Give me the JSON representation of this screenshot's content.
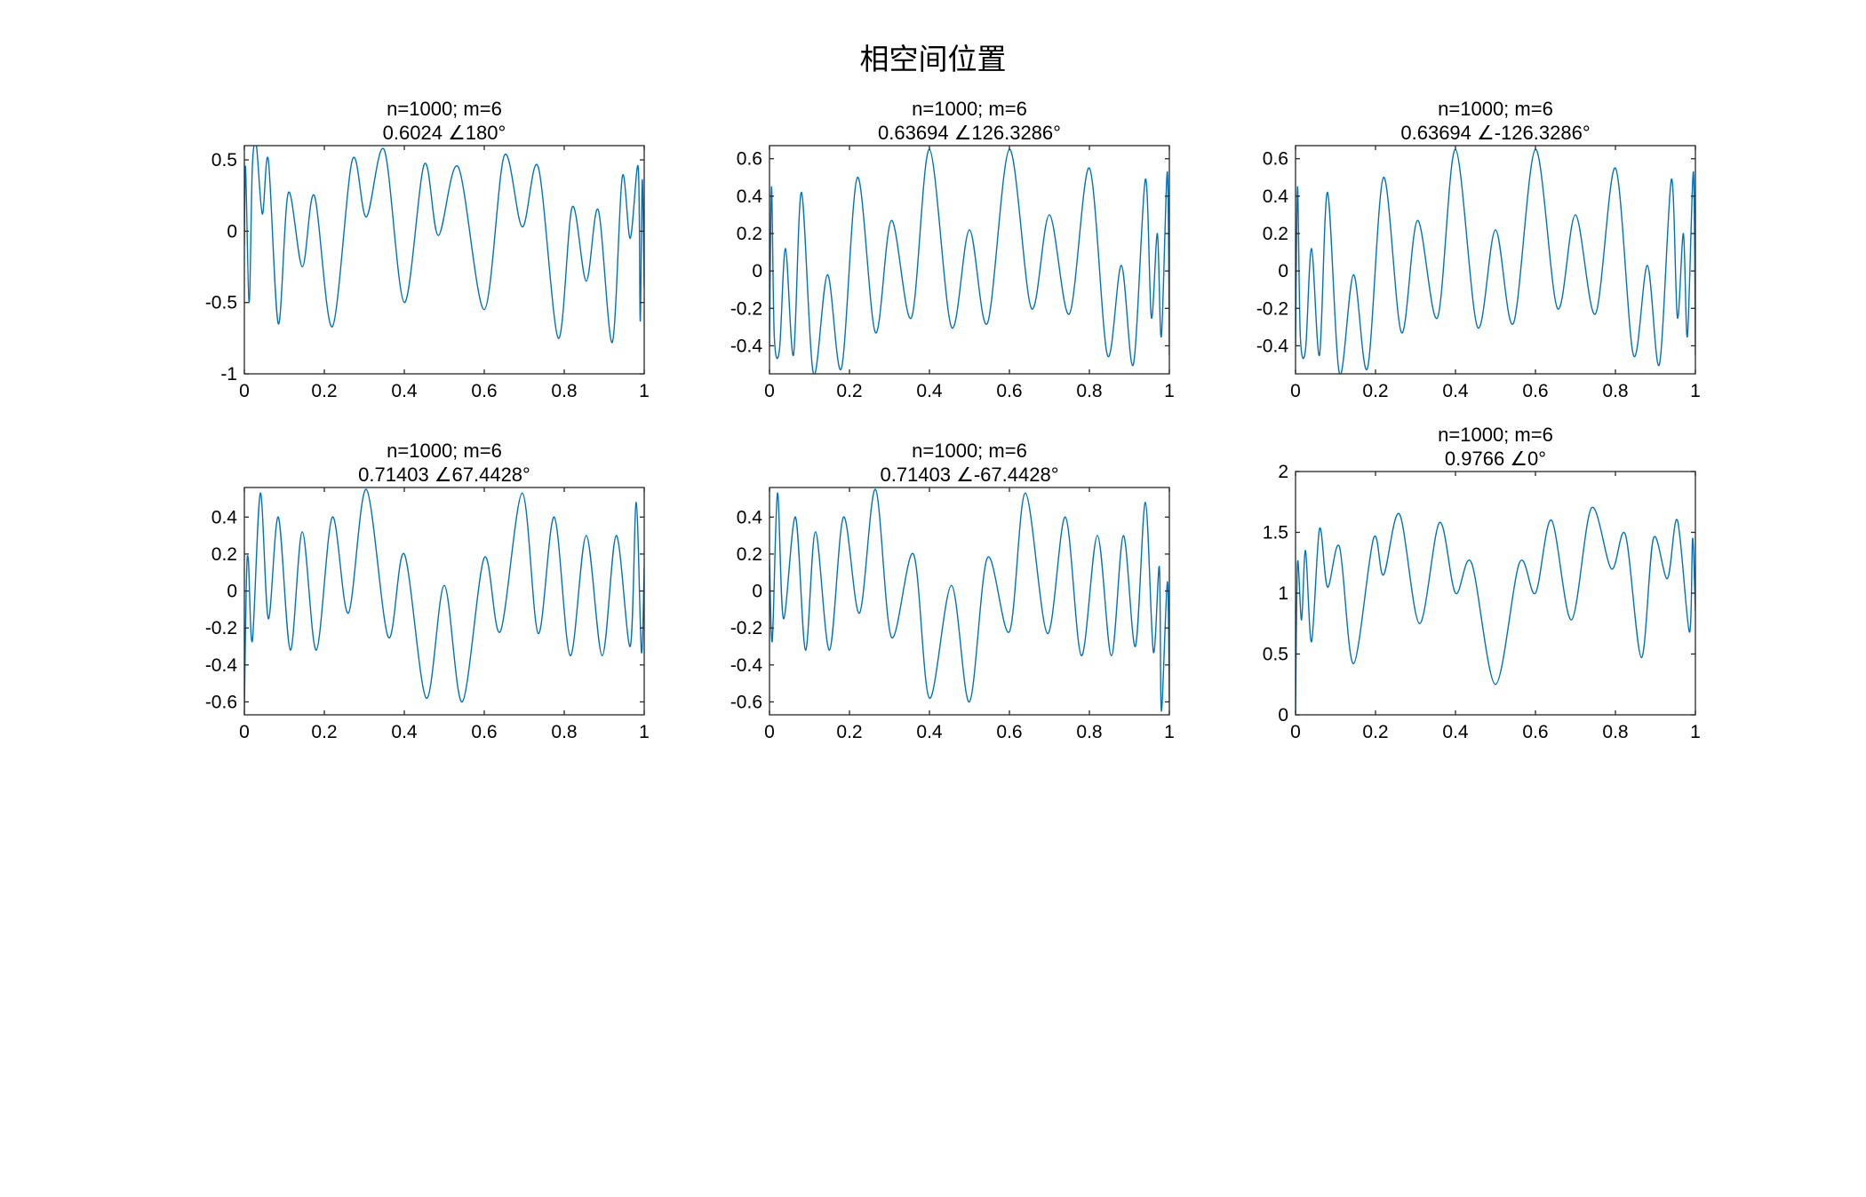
{
  "figure_title": "相空间位置",
  "colors": {
    "line": "#0072BD",
    "axes": "#262626",
    "background": "#ffffff"
  },
  "chart_data": [
    {
      "type": "line",
      "title_line1": "n=1000; m=6",
      "title_line2": "0.6024 ∠180°",
      "xlim": [
        0,
        1
      ],
      "ylim": [
        -1,
        0.6
      ],
      "xticks": [
        0,
        0.2,
        0.4,
        0.6,
        0.8,
        1
      ],
      "xtick_labels": [
        "0",
        "0.2",
        "0.4",
        "0.6",
        "0.8",
        "1"
      ],
      "yticks": [
        -1,
        -0.5,
        0,
        0.5
      ],
      "ytick_labels": [
        "-1",
        "-0.5",
        "0",
        "0.5"
      ],
      "x": [
        0,
        0.003,
        0.012,
        0.02,
        0.03,
        0.045,
        0.06,
        0.085,
        0.11,
        0.145,
        0.175,
        0.22,
        0.27,
        0.305,
        0.35,
        0.4,
        0.45,
        0.485,
        0.535,
        0.6,
        0.65,
        0.695,
        0.735,
        0.785,
        0.82,
        0.855,
        0.885,
        0.92,
        0.945,
        0.965,
        0.985,
        0.99,
        0.995,
        1.0
      ],
      "y": [
        -0.1,
        0.45,
        -0.5,
        0.45,
        0.6,
        0.12,
        0.5,
        -0.65,
        0.27,
        -0.25,
        0.25,
        -0.67,
        0.5,
        0.1,
        0.57,
        -0.5,
        0.47,
        -0.03,
        0.45,
        -0.55,
        0.53,
        0.03,
        0.45,
        -0.75,
        0.17,
        -0.35,
        0.15,
        -0.78,
        0.38,
        -0.05,
        0.45,
        -0.63,
        0.36,
        -0.4
      ]
    },
    {
      "type": "line",
      "title_line1": "n=1000; m=6",
      "title_line2": "0.63694 ∠126.3286°",
      "xlim": [
        0,
        1
      ],
      "ylim": [
        -0.55,
        0.67
      ],
      "xticks": [
        0,
        0.2,
        0.4,
        0.6,
        0.8,
        1
      ],
      "xtick_labels": [
        "0",
        "0.2",
        "0.4",
        "0.6",
        "0.8",
        "1"
      ],
      "yticks": [
        -0.4,
        -0.2,
        0,
        0.2,
        0.4,
        0.6
      ],
      "ytick_labels": [
        "-0.4",
        "-0.2",
        "0",
        "0.2",
        "0.4",
        "0.6"
      ],
      "x": [
        0,
        0.005,
        0.012,
        0.025,
        0.04,
        0.06,
        0.08,
        0.11,
        0.145,
        0.18,
        0.22,
        0.265,
        0.305,
        0.355,
        0.4,
        0.455,
        0.5,
        0.545,
        0.6,
        0.655,
        0.7,
        0.75,
        0.8,
        0.845,
        0.88,
        0.91,
        0.94,
        0.955,
        0.97,
        0.98,
        0.995,
        1.0
      ],
      "y": [
        -0.4,
        0.45,
        -0.35,
        -0.42,
        0.12,
        -0.45,
        0.42,
        -0.55,
        -0.02,
        -0.52,
        0.5,
        -0.33,
        0.27,
        -0.25,
        0.65,
        -0.3,
        0.22,
        -0.28,
        0.65,
        -0.2,
        0.3,
        -0.23,
        0.55,
        -0.45,
        0.03,
        -0.5,
        0.49,
        -0.25,
        0.2,
        -0.35,
        0.53,
        -0.45
      ]
    },
    {
      "type": "line",
      "title_line1": "n=1000; m=6",
      "title_line2": "0.63694 ∠-126.3286°",
      "xlim": [
        0,
        1
      ],
      "ylim": [
        -0.55,
        0.67
      ],
      "xticks": [
        0,
        0.2,
        0.4,
        0.6,
        0.8,
        1
      ],
      "xtick_labels": [
        "0",
        "0.2",
        "0.4",
        "0.6",
        "0.8",
        "1"
      ],
      "yticks": [
        -0.4,
        -0.2,
        0,
        0.2,
        0.4,
        0.6
      ],
      "ytick_labels": [
        "-0.4",
        "-0.2",
        "0",
        "0.2",
        "0.4",
        "0.6"
      ],
      "x": [
        0,
        0.005,
        0.012,
        0.025,
        0.04,
        0.06,
        0.08,
        0.11,
        0.145,
        0.18,
        0.22,
        0.265,
        0.305,
        0.355,
        0.4,
        0.455,
        0.5,
        0.545,
        0.6,
        0.655,
        0.7,
        0.75,
        0.8,
        0.845,
        0.88,
        0.91,
        0.94,
        0.955,
        0.97,
        0.98,
        0.995,
        1.0
      ],
      "y": [
        -0.4,
        0.45,
        -0.35,
        -0.42,
        0.12,
        -0.45,
        0.42,
        -0.55,
        -0.02,
        -0.52,
        0.5,
        -0.33,
        0.27,
        -0.25,
        0.65,
        -0.3,
        0.22,
        -0.28,
        0.65,
        -0.2,
        0.3,
        -0.23,
        0.55,
        -0.45,
        0.03,
        -0.5,
        0.49,
        -0.25,
        0.2,
        -0.35,
        0.53,
        -0.45
      ]
    },
    {
      "type": "line",
      "title_line1": "n=1000; m=6",
      "title_line2": "0.71403 ∠67.4428°",
      "xlim": [
        0,
        1
      ],
      "ylim": [
        -0.67,
        0.56
      ],
      "xticks": [
        0,
        0.2,
        0.4,
        0.6,
        0.8,
        1
      ],
      "xtick_labels": [
        "0",
        "0.2",
        "0.4",
        "0.6",
        "0.8",
        "1"
      ],
      "yticks": [
        -0.6,
        -0.4,
        -0.2,
        0,
        0.2,
        0.4
      ],
      "ytick_labels": [
        "-0.6",
        "-0.4",
        "-0.2",
        "0",
        "0.2",
        "0.4"
      ],
      "x": [
        0,
        0.005,
        0.01,
        0.02,
        0.04,
        0.06,
        0.085,
        0.115,
        0.145,
        0.18,
        0.22,
        0.26,
        0.305,
        0.36,
        0.4,
        0.455,
        0.5,
        0.545,
        0.6,
        0.64,
        0.695,
        0.735,
        0.775,
        0.815,
        0.855,
        0.895,
        0.93,
        0.965,
        0.98,
        0.993,
        1.0
      ],
      "y": [
        -0.65,
        0.05,
        0.17,
        -0.27,
        0.53,
        -0.15,
        0.4,
        -0.32,
        0.32,
        -0.32,
        0.4,
        -0.12,
        0.55,
        -0.25,
        0.2,
        -0.58,
        0.03,
        -0.6,
        0.18,
        -0.22,
        0.53,
        -0.23,
        0.4,
        -0.35,
        0.3,
        -0.35,
        0.3,
        -0.3,
        0.48,
        -0.33,
        0.13
      ]
    },
    {
      "type": "line",
      "title_line1": "n=1000; m=6",
      "title_line2": "0.71403 ∠-67.4428°",
      "xlim": [
        0,
        1
      ],
      "ylim": [
        -0.67,
        0.56
      ],
      "xticks": [
        0,
        0.2,
        0.4,
        0.6,
        0.8,
        1
      ],
      "xtick_labels": [
        "0",
        "0.2",
        "0.4",
        "0.6",
        "0.8",
        "1"
      ],
      "yticks": [
        -0.6,
        -0.4,
        -0.2,
        0,
        0.2,
        0.4
      ],
      "ytick_labels": [
        "-0.6",
        "-0.4",
        "-0.2",
        "0",
        "0.2",
        "0.4"
      ],
      "x": [
        0,
        0.007,
        0.02,
        0.035,
        0.065,
        0.09,
        0.115,
        0.15,
        0.185,
        0.225,
        0.265,
        0.305,
        0.36,
        0.4,
        0.455,
        0.5,
        0.545,
        0.6,
        0.64,
        0.695,
        0.74,
        0.78,
        0.82,
        0.855,
        0.885,
        0.915,
        0.94,
        0.96,
        0.975,
        0.98,
        0.995,
        1.0
      ],
      "y": [
        0.17,
        -0.27,
        0.53,
        -0.15,
        0.4,
        -0.32,
        0.32,
        -0.32,
        0.4,
        -0.12,
        0.55,
        -0.25,
        0.2,
        -0.58,
        0.03,
        -0.6,
        0.18,
        -0.22,
        0.53,
        -0.23,
        0.4,
        -0.35,
        0.3,
        -0.35,
        0.3,
        -0.3,
        0.48,
        -0.33,
        0.13,
        -0.65,
        0.05,
        -0.6
      ]
    },
    {
      "type": "line",
      "title_line1": "n=1000; m=6",
      "title_line2": "0.9766 ∠0°",
      "xlim": [
        0,
        1
      ],
      "ylim": [
        0,
        2
      ],
      "xticks": [
        0,
        0.2,
        0.4,
        0.6,
        0.8,
        1
      ],
      "xtick_labels": [
        "0",
        "0.2",
        "0.4",
        "0.6",
        "0.8",
        "1"
      ],
      "yticks": [
        0,
        0.5,
        1,
        1.5,
        2
      ],
      "ytick_labels": [
        "0",
        "0.5",
        "1",
        "1.5",
        "2"
      ],
      "x": [
        0,
        0.005,
        0.015,
        0.025,
        0.04,
        0.06,
        0.08,
        0.11,
        0.145,
        0.195,
        0.22,
        0.26,
        0.31,
        0.36,
        0.4,
        0.44,
        0.5,
        0.56,
        0.6,
        0.64,
        0.69,
        0.74,
        0.79,
        0.825,
        0.865,
        0.895,
        0.93,
        0.955,
        0.985,
        0.993,
        1.0
      ],
      "y": [
        0.0,
        1.25,
        0.78,
        1.35,
        0.6,
        1.53,
        1.05,
        1.38,
        0.42,
        1.45,
        1.15,
        1.65,
        0.75,
        1.58,
        1.0,
        1.25,
        0.25,
        1.25,
        1.0,
        1.6,
        0.78,
        1.7,
        1.2,
        1.48,
        0.47,
        1.45,
        1.12,
        1.6,
        0.68,
        1.45,
        0.85
      ]
    }
  ]
}
